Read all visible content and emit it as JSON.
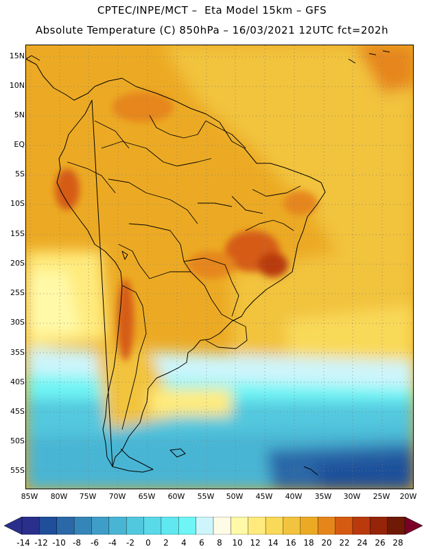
{
  "header": {
    "title_line1": "CPTEC/INPE/MCT –  Eta Model 15km – GFS",
    "title_line2": "Absolute Temperature (C) 850hPa – 16/03/2021 12UTC fct=202h"
  },
  "map": {
    "lat_labels": [
      "15N",
      "10N",
      "5N",
      "EQ",
      "5S",
      "10S",
      "15S",
      "20S",
      "25S",
      "30S",
      "35S",
      "40S",
      "45S",
      "50S",
      "55S"
    ],
    "lon_labels": [
      "85W",
      "80W",
      "75W",
      "70W",
      "65W",
      "60W",
      "55W",
      "50W",
      "45W",
      "40W",
      "35W",
      "30W",
      "25W",
      "20W"
    ]
  },
  "colorbar": {
    "labels": [
      "-14",
      "-12",
      "-10",
      "-8",
      "-6",
      "-4",
      "-2",
      "0",
      "2",
      "4",
      "6",
      "8",
      "10",
      "12",
      "14",
      "16",
      "18",
      "20",
      "22",
      "24",
      "26",
      "28"
    ],
    "colors": [
      "#2a2f8c",
      "#1f4f9a",
      "#2b68a8",
      "#3586b8",
      "#3f9ec8",
      "#48b5d4",
      "#52c8de",
      "#5ad9e8",
      "#5fe8f0",
      "#6ff5f5",
      "#cdf5fb",
      "#fffbe6",
      "#fff9a8",
      "#ffeb7d",
      "#f9d958",
      "#f2c33e",
      "#ecaa24",
      "#e6861a",
      "#d65b12",
      "#b93a0d",
      "#952408",
      "#6e1a06"
    ],
    "arrow_left_color": "#2a2f8c",
    "arrow_right_color": "#7a0028"
  }
}
